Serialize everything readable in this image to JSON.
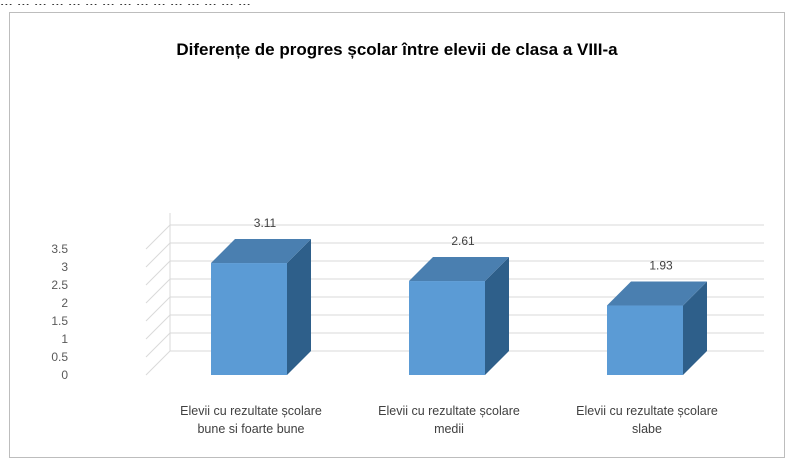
{
  "page": {
    "top_text": "... ... ... ... ... ... ... ... ... ... ... ... ... ... ..."
  },
  "chart_data": {
    "type": "bar",
    "title": "Diferențe de progres școlar între elevii de clasa a VIII-a",
    "categories": [
      [
        "Elevii cu rezultate școlare",
        "bune si foarte bune"
      ],
      [
        "Elevii cu rezultate școlare",
        "medii"
      ],
      [
        "Elevii cu rezultate școlare",
        "slabe"
      ]
    ],
    "values": [
      3.11,
      2.61,
      1.93
    ],
    "data_labels": [
      "3.11",
      "2.61",
      "1.93"
    ],
    "ylim": [
      0,
      3.5
    ],
    "yticks": [
      "0",
      "0.5",
      "1",
      "1.5",
      "2",
      "2.5",
      "3",
      "3.5"
    ],
    "xlabel": "",
    "ylabel": "",
    "three_d": true,
    "grid": true,
    "legend": "none",
    "colors": {
      "bar_front": "#5b9bd5",
      "bar_side": "#2e5f8a",
      "bar_top": "#4a7fb0",
      "grid": "#d9d9d9"
    }
  }
}
